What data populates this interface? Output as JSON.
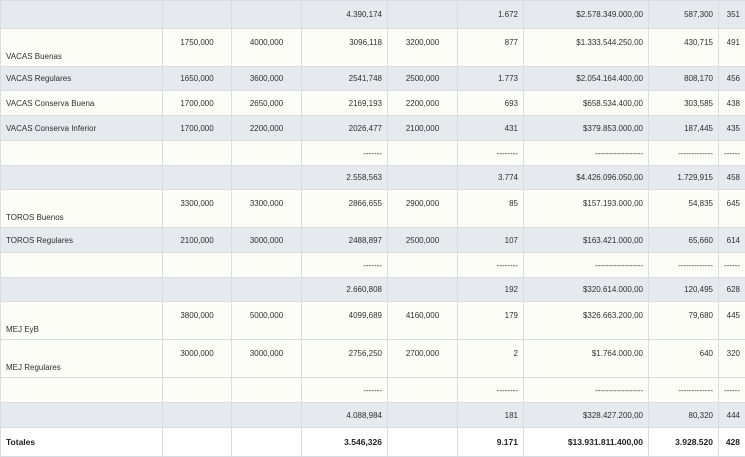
{
  "table": {
    "rows": [
      {
        "cells": [
          "",
          "",
          "",
          "4.390,174",
          "",
          "1.672",
          "$2.578.349.000,00",
          "587,300",
          "351"
        ]
      },
      {
        "cells": [
          "VACAS Buenas",
          "1750,000",
          "4000,000",
          "3096,118",
          "3200,000",
          "877",
          "$1.333.544.250,00",
          "430,715",
          "491"
        ]
      },
      {
        "cells": [
          "VACAS Regulares",
          "1650,000",
          "3600,000",
          "2541,748",
          "2500,000",
          "1.773",
          "$2.054.164.400,00",
          "808,170",
          "456"
        ]
      },
      {
        "cells": [
          "VACAS Conserva Buena",
          "1700,000",
          "2650,000",
          "2169,193",
          "2200,000",
          "693",
          "$658.534.400,00",
          "303,585",
          "438"
        ]
      },
      {
        "cells": [
          "VACAS Conserva Inferior",
          "1700,000",
          "2200,000",
          "2026,477",
          "2100,000",
          "431",
          "$379.853.000,00",
          "187,445",
          "435"
        ]
      },
      {
        "cells": [
          "",
          "",
          "",
          "-------",
          "",
          "--------",
          "------------------",
          "-------------",
          "------"
        ]
      },
      {
        "cells": [
          "",
          "",
          "",
          "2.558,563",
          "",
          "3.774",
          "$4.426.096.050,00",
          "1.729,915",
          "458"
        ]
      },
      {
        "cells": [
          "TOROS Buenos",
          "3300,000",
          "3300,000",
          "2866,655",
          "2900,000",
          "85",
          "$157.193.000,00",
          "54,835",
          "645"
        ]
      },
      {
        "cells": [
          "TOROS Regulares",
          "2100,000",
          "3000,000",
          "2488,897",
          "2500,000",
          "107",
          "$163.421.000,00",
          "65,660",
          "614"
        ]
      },
      {
        "cells": [
          "",
          "",
          "",
          "-------",
          "",
          "--------",
          "------------------",
          "-------------",
          "------"
        ]
      },
      {
        "cells": [
          "",
          "",
          "",
          "2.660,808",
          "",
          "192",
          "$320.614.000,00",
          "120,495",
          "628"
        ]
      },
      {
        "cells": [
          "MEJ EyB",
          "3800,000",
          "5000,000",
          "4099,689",
          "4160,000",
          "179",
          "$326.663.200,00",
          "79,680",
          "445"
        ]
      },
      {
        "cells": [
          "MEJ Regulares",
          "3000,000",
          "3000,000",
          "2756,250",
          "2700,000",
          "2",
          "$1.764.000,00",
          "640",
          "320"
        ]
      },
      {
        "cells": [
          "",
          "",
          "",
          "-------",
          "",
          "--------",
          "------------------",
          "-------------",
          "------"
        ]
      },
      {
        "cells": [
          "",
          "",
          "",
          "4.088,984",
          "",
          "181",
          "$328.427.200,00",
          "80,320",
          "444"
        ]
      },
      {
        "cells": [
          "Totales",
          "",
          "",
          "3.546,326",
          "",
          "9.171",
          "$13.931.811.400,00",
          "3.928.520",
          "428"
        ]
      }
    ]
  }
}
